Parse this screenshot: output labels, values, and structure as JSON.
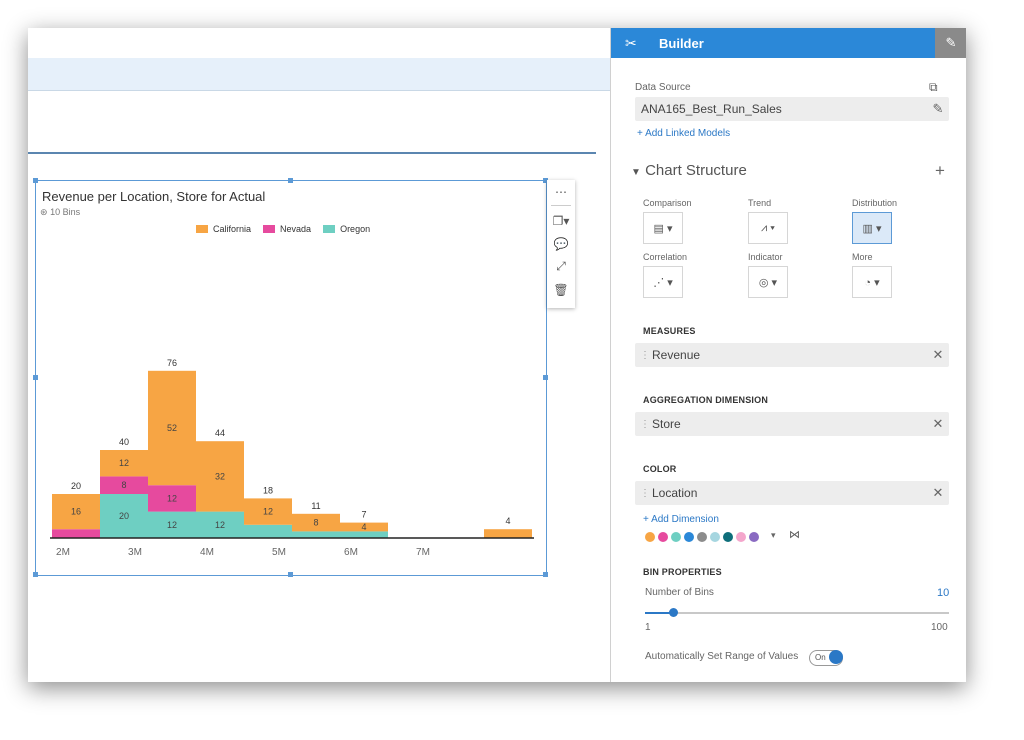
{
  "chart_data": {
    "type": "bar",
    "title": "Revenue per Location, Store for Actual",
    "subtitle": "10 Bins",
    "stacked": true,
    "x_ticks": [
      "2M",
      "3M",
      "4M",
      "5M",
      "6M",
      "7M"
    ],
    "legend_position": "top",
    "series": [
      {
        "name": "California",
        "color": "#f7a544",
        "values": [
          16,
          12,
          52,
          32,
          12,
          8,
          4,
          0,
          0,
          4
        ]
      },
      {
        "name": "Nevada",
        "color": "#e64a9e",
        "values": [
          4,
          8,
          12,
          0,
          0,
          0,
          0,
          0,
          0,
          0
        ]
      },
      {
        "name": "Oregon",
        "color": "#6ecfc2",
        "values": [
          0,
          20,
          12,
          12,
          6,
          3,
          3,
          0,
          0,
          0
        ]
      }
    ],
    "totals": [
      "20",
      "40",
      "76",
      "44",
      "18",
      "11",
      "7",
      "",
      "",
      "4"
    ],
    "segment_labels": {
      "California": [
        "16",
        "12",
        "52",
        "32",
        "12",
        "8",
        "4",
        "",
        "",
        ""
      ],
      "Nevada": [
        "",
        "8",
        "12",
        "",
        "",
        "",
        "",
        "",
        "",
        ""
      ],
      "Oregon": [
        "",
        "20",
        "12",
        "12",
        "",
        "",
        "",
        "",
        "",
        ""
      ]
    }
  },
  "chart_tools": {
    "more_icon": "more-icon",
    "copy_icon": "copy-icon",
    "comment_icon": "comment-icon",
    "fullscreen_icon": "fullscreen-icon",
    "delete_icon": "delete-icon"
  },
  "builder": {
    "title": "Builder",
    "data_source_label": "Data Source",
    "data_source_value": "ANA165_Best_Run_Sales",
    "add_linked_models": "+ Add Linked Models",
    "chart_structure": "Chart Structure",
    "chart_types": [
      {
        "label": "Comparison",
        "icon": "bar-chart-icon",
        "glyph": "▤ ▾"
      },
      {
        "label": "Trend",
        "icon": "line-chart-icon",
        "glyph": "⩘ ▾"
      },
      {
        "label": "Distribution",
        "icon": "histogram-icon",
        "glyph": "▥ ▾"
      },
      {
        "label": "Correlation",
        "icon": "scatter-icon",
        "glyph": "⋰ ▾"
      },
      {
        "label": "Indicator",
        "icon": "target-icon",
        "glyph": "◎ ▾"
      },
      {
        "label": "More",
        "icon": "pie-icon",
        "glyph": "◔ ▾"
      }
    ],
    "measures_label": "MEASURES",
    "measures_value": "Revenue",
    "aggregation_label": "AGGREGATION DIMENSION",
    "aggregation_value": "Store",
    "color_label": "COLOR",
    "color_value": "Location",
    "add_dimension": "+ Add Dimension",
    "palette": [
      "#f7a544",
      "#e64a9e",
      "#6ecfc2",
      "#2b88d8",
      "#8c8c8c",
      "#a6d6e0",
      "#0e6e7a",
      "#f4a6cc",
      "#8a6ac2"
    ],
    "bin_properties_label": "BIN PROPERTIES",
    "number_of_bins_label": "Number of Bins",
    "number_of_bins_value": "10",
    "slider_min": "1",
    "slider_max": "100",
    "slider_value": 10,
    "auto_range_label": "Automatically Set Range of Values",
    "toggle_label": "On"
  }
}
